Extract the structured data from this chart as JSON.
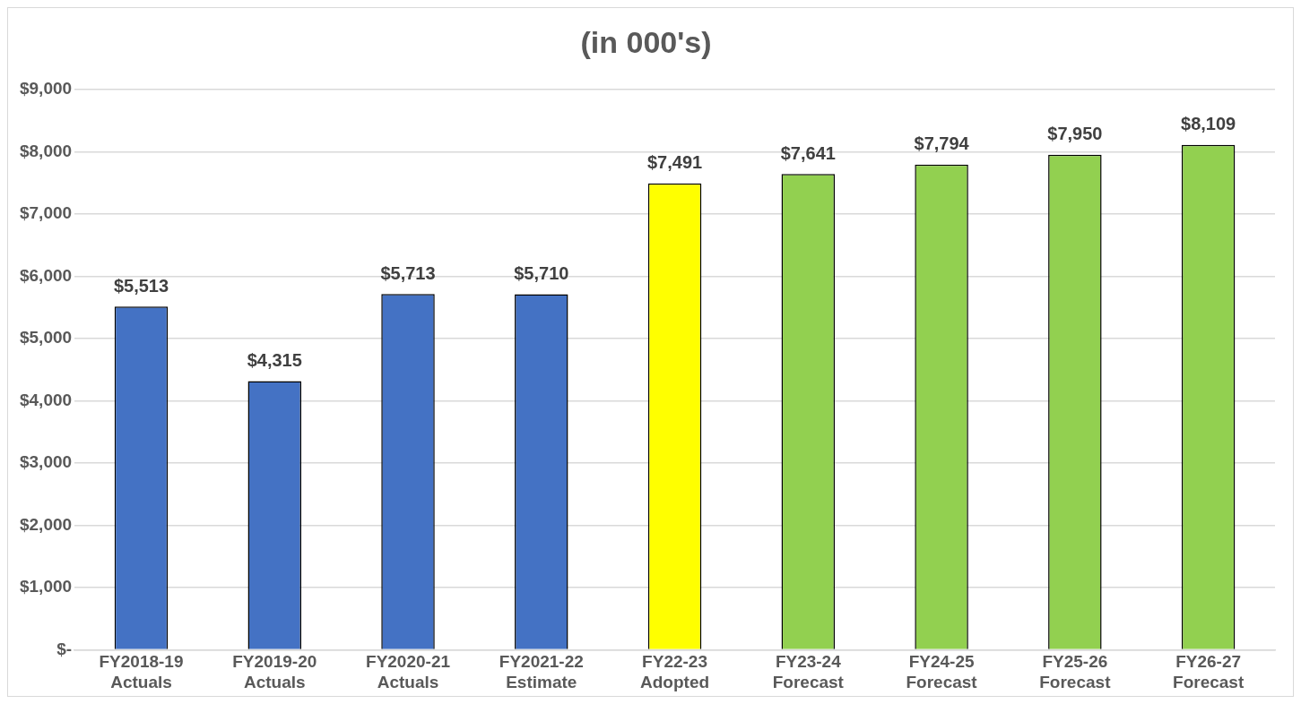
{
  "chart_data": {
    "type": "bar",
    "title": "(in 000's)",
    "categories": [
      "FY2018-19 Actuals",
      "FY2019-20 Actuals",
      "FY2020-21 Actuals",
      "FY2021-22 Estimate",
      "FY22-23 Adopted",
      "FY23-24 Forecast",
      "FY24-25 Forecast",
      "FY25-26 Forecast",
      "FY26-27 Forecast"
    ],
    "values": [
      5513,
      4315,
      5713,
      5710,
      7491,
      7641,
      7794,
      7950,
      8109
    ],
    "colors": [
      "#4472c4",
      "#4472c4",
      "#4472c4",
      "#4472c4",
      "#ffff00",
      "#92d050",
      "#92d050",
      "#92d050",
      "#92d050"
    ],
    "value_labels": [
      "$5,513",
      "$4,315",
      "$5,713",
      "$5,710",
      "$7,491",
      "$7,641",
      "$7,794",
      "$7,950",
      "$8,109"
    ],
    "ylim": [
      0,
      9000
    ],
    "yticks": [
      {
        "value": 0,
        "label": "$-"
      },
      {
        "value": 1000,
        "label": "$1,000"
      },
      {
        "value": 2000,
        "label": "$2,000"
      },
      {
        "value": 3000,
        "label": "$3,000"
      },
      {
        "value": 4000,
        "label": "$4,000"
      },
      {
        "value": 5000,
        "label": "$5,000"
      },
      {
        "value": 6000,
        "label": "$6,000"
      },
      {
        "value": 7000,
        "label": "$7,000"
      },
      {
        "value": 8000,
        "label": "$8,000"
      },
      {
        "value": 9000,
        "label": "$9,000"
      }
    ],
    "grid": "y",
    "legend": false
  }
}
